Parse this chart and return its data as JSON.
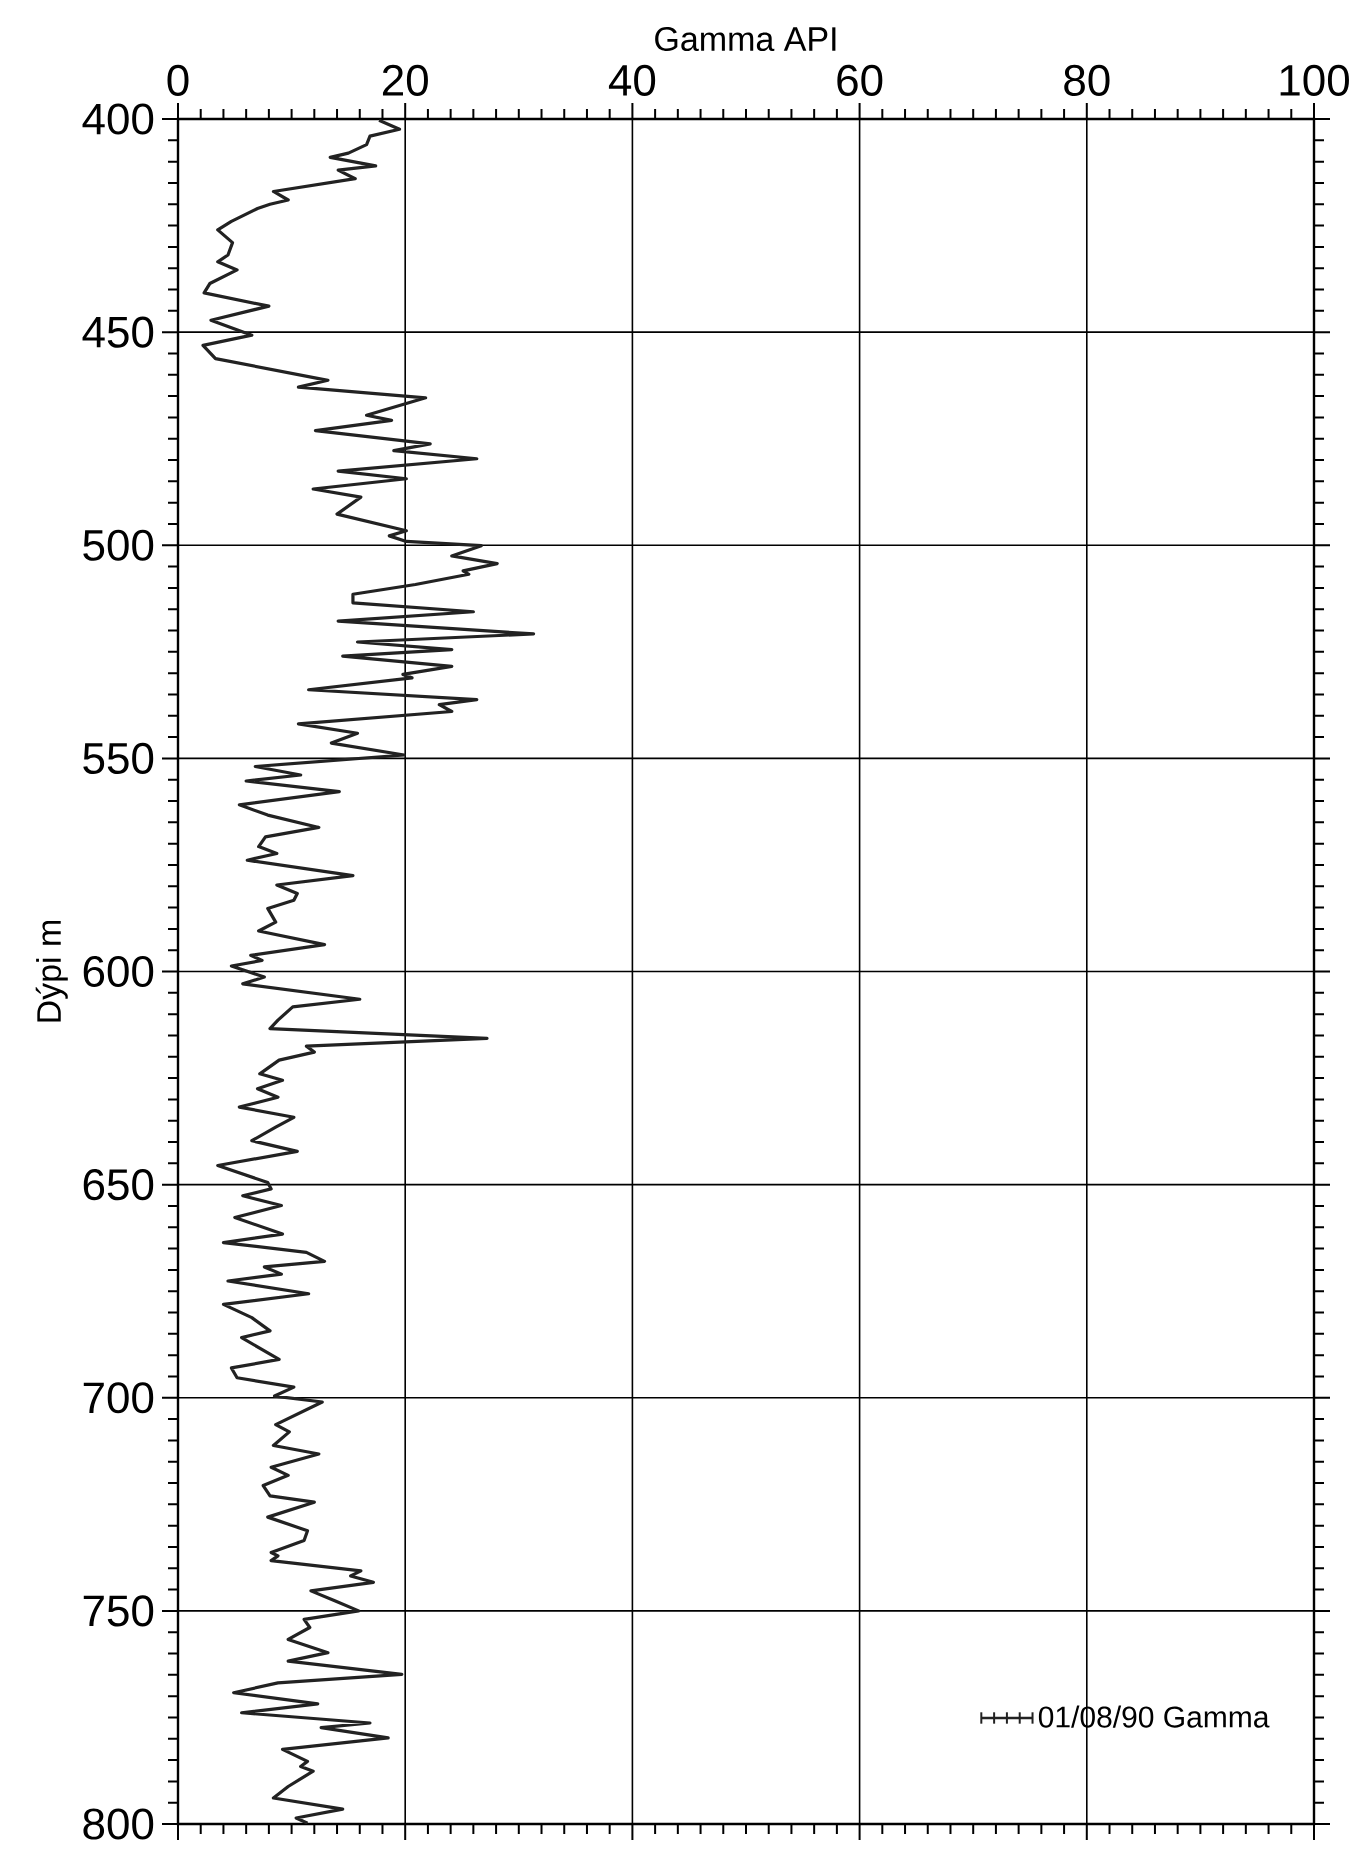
{
  "chart_data": {
    "type": "line",
    "xlabel": "Gamma API",
    "ylabel": "Dýpi m",
    "xlim": [
      0,
      100
    ],
    "xticks": [
      0,
      20,
      40,
      60,
      80,
      100
    ],
    "ylim": [
      800,
      400
    ],
    "yticks": [
      400,
      450,
      500,
      550,
      600,
      650,
      700,
      750,
      800
    ],
    "grid": true,
    "legend": "bottom right",
    "series": [
      {
        "name": "01/08/90 Gamma",
        "color": "#222222",
        "x": [
          17.7,
          19.5,
          16.9,
          16.6,
          15.0,
          13.4,
          17.4,
          14.1,
          15.6,
          8.4,
          9.7,
          8.1,
          7.0,
          4.7,
          3.5,
          4.8,
          4.4,
          3.5,
          5.2,
          2.8,
          2.3,
          8.0,
          2.9,
          6.5,
          2.2,
          3.3,
          13.2,
          10.6,
          21.8,
          16.6,
          18.8,
          12.1,
          22.2,
          19.0,
          26.3,
          14.1,
          20.1,
          11.9,
          16.1,
          14.0,
          20.1,
          18.6,
          20.1,
          26.7,
          24.1,
          28.1,
          25.1,
          25.6,
          20.9,
          15.4,
          15.4,
          26.0,
          14.1,
          31.3,
          15.8,
          24.1,
          14.5,
          24.1,
          19.8,
          20.6,
          11.5,
          26.3,
          23.0,
          24.1,
          10.6,
          15.8,
          13.5,
          19.9,
          6.8,
          10.8,
          6.0,
          14.2,
          5.4,
          7.9,
          12.4,
          7.7,
          7.1,
          8.7,
          6.1,
          15.4,
          8.7,
          10.5,
          10.2,
          7.9,
          8.6,
          7.1,
          12.9,
          6.4,
          7.4,
          4.7,
          7.6,
          5.7,
          16.0,
          10.1,
          8.8,
          8.1,
          27.2,
          11.3,
          12.0,
          8.9,
          7.2,
          9.2,
          7.0,
          8.8,
          5.4,
          10.2,
          8.6,
          6.5,
          10.5,
          3.5,
          7.9,
          8.2,
          5.7,
          9.1,
          5.0,
          9.2,
          4.0,
          11.3,
          12.9,
          7.6,
          9.1,
          4.4,
          11.5,
          4.0,
          6.5,
          8.1,
          5.6,
          8.9,
          4.7,
          5.2,
          10.2,
          8.5,
          12.7,
          8.6,
          9.8,
          8.4,
          12.4,
          8.2,
          9.7,
          7.5,
          8.1,
          12.0,
          7.9,
          11.4,
          11.1,
          8.2,
          8.8,
          8.2,
          16.1,
          15.2,
          17.2,
          11.7,
          13.8,
          15.9,
          11.1,
          11.6,
          9.7,
          13.2,
          9.7,
          19.7,
          8.8,
          4.9,
          12.3,
          5.6,
          16.9,
          12.6,
          18.5,
          9.2,
          11.4,
          10.8,
          11.9,
          9.7,
          8.4,
          14.5,
          10.4,
          11.4
        ],
        "values": [
          400.3,
          402.4,
          404,
          406,
          408,
          409,
          411,
          412,
          414,
          417,
          419,
          420,
          421,
          424,
          426,
          429,
          431.9,
          433.5,
          435.4,
          438.6,
          440.8,
          443.9,
          447.2,
          450.7,
          453.1,
          456.2,
          461.3,
          462.9,
          465.4,
          469.5,
          470.7,
          473.1,
          476.2,
          477.8,
          479.7,
          482.6,
          484.4,
          486.8,
          488.7,
          492.7,
          496.6,
          497.8,
          499.1,
          500.1,
          502.5,
          504.3,
          506,
          506.8,
          509.2,
          511.5,
          513.5,
          515.6,
          517.8,
          520.8,
          522.7,
          524.5,
          526,
          528.4,
          530.3,
          531.1,
          533.9,
          536.2,
          537.4,
          539,
          541.9,
          544.1,
          546.4,
          549.2,
          551.9,
          553.9,
          555.3,
          557.8,
          560.9,
          563.3,
          566.2,
          568.4,
          570.7,
          572.3,
          573.9,
          577.5,
          579.7,
          581.7,
          583.3,
          585.2,
          588.4,
          590.5,
          593.7,
          596.2,
          597.4,
          598.7,
          601.3,
          602.9,
          606.5,
          608.3,
          611.4,
          613.4,
          615.7,
          617.5,
          618.9,
          620.8,
          624,
          625.5,
          627.5,
          629.5,
          631.8,
          634.2,
          636.5,
          639.7,
          642.2,
          645.5,
          649.5,
          651,
          652.6,
          654.9,
          657.7,
          661.6,
          663.6,
          665.9,
          668,
          669.3,
          671,
          672.6,
          675.6,
          678.1,
          681.2,
          684.3,
          685.9,
          691,
          693,
          695.3,
          697.5,
          699.6,
          701,
          706.3,
          708,
          711.2,
          713.2,
          716.3,
          718.2,
          720.6,
          723,
          724.5,
          728,
          731.2,
          733.5,
          736.3,
          737.1,
          738.2,
          740.6,
          741.8,
          743.3,
          745.3,
          747.6,
          750,
          752,
          753.9,
          756.7,
          759.8,
          761.8,
          764.9,
          766.9,
          769.2,
          771.8,
          773.9,
          776.3,
          777.4,
          779.8,
          782.5,
          785.3,
          786.5,
          787.6,
          791.2,
          793.9,
          796.5,
          798.6,
          799.8
        ]
      }
    ]
  }
}
